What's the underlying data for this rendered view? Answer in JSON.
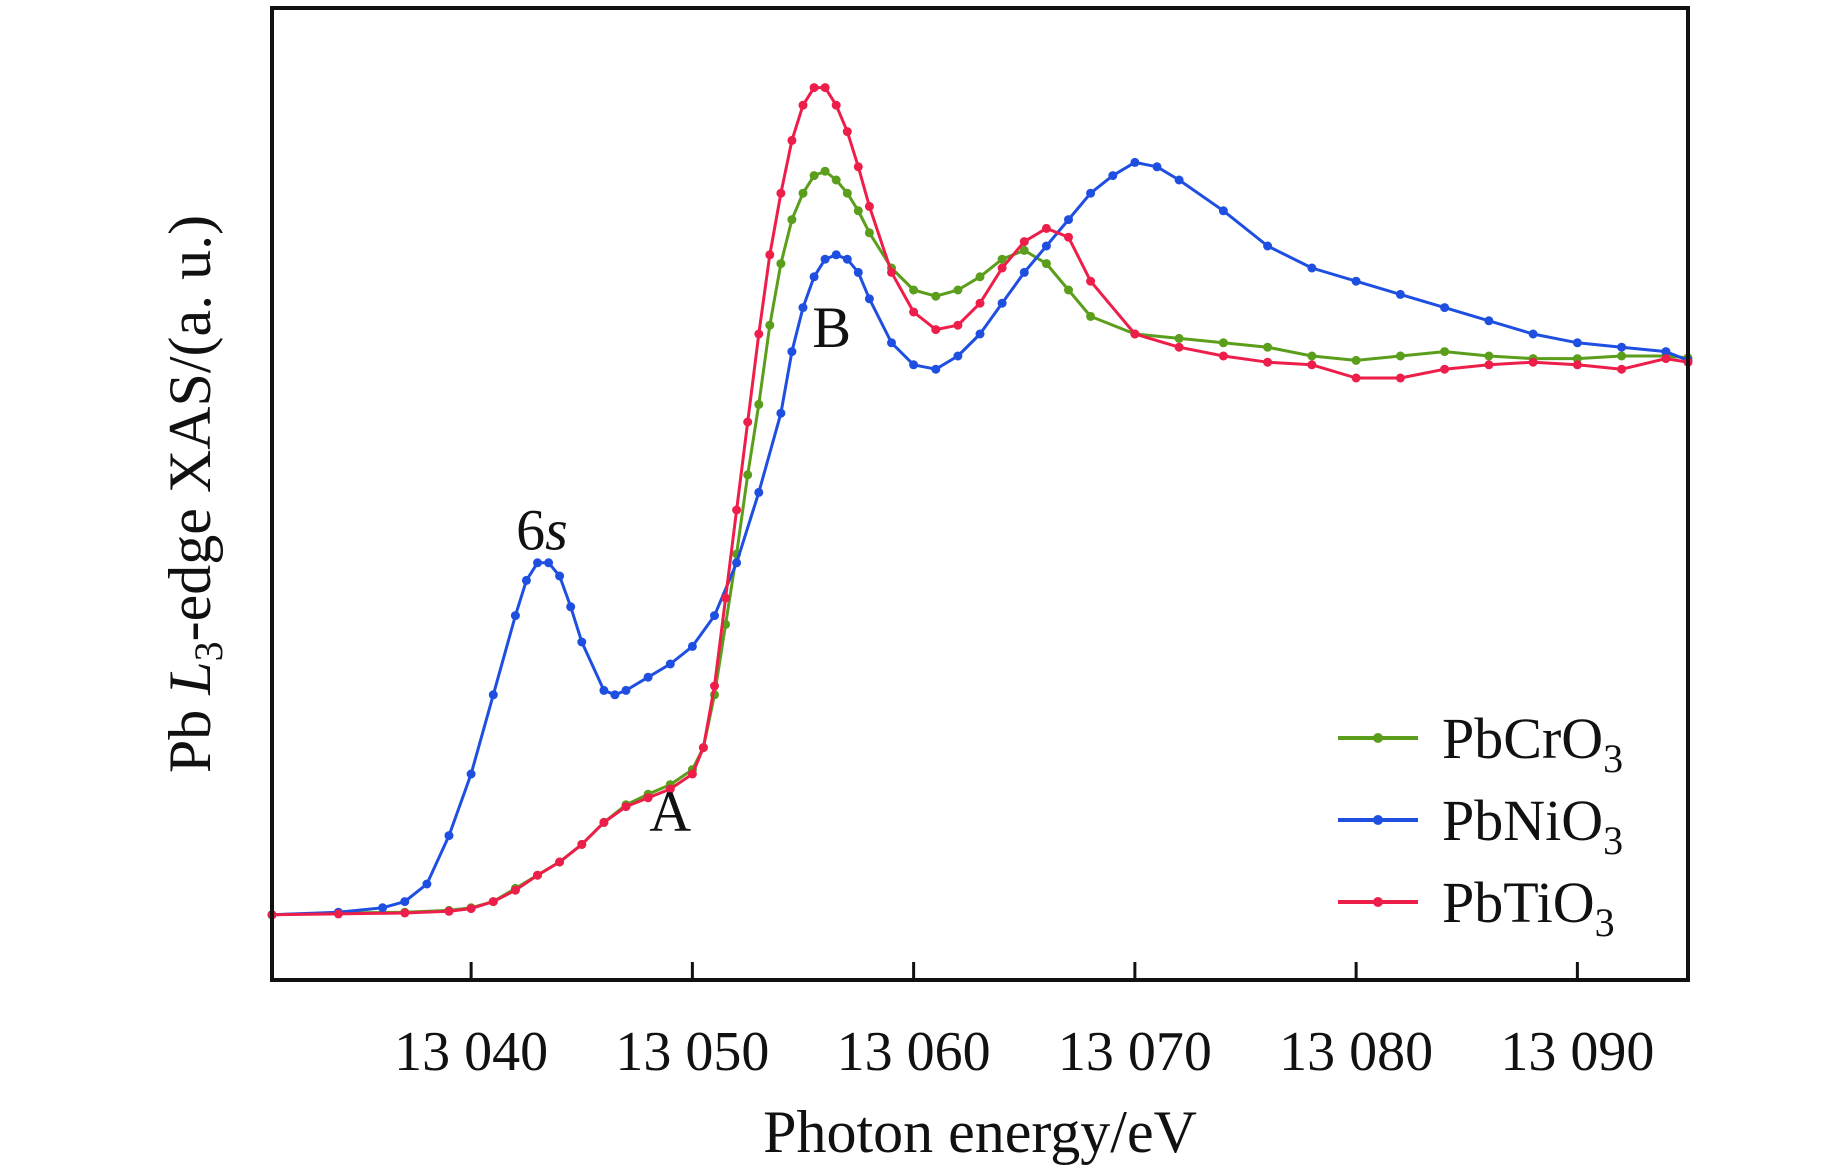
{
  "chart_data": {
    "type": "line",
    "xlabel": "Photon energy/eV",
    "ylabel": {
      "prefix": "Pb ",
      "italic": "L",
      "sub": "3",
      "suffix": "-edge XAS/(a. u.)"
    },
    "xlim": [
      13031,
      13095
    ],
    "ylim": [
      0,
      1
    ],
    "xticks": [
      13040,
      13050,
      13060,
      13070,
      13080,
      13090
    ],
    "xtick_labels": [
      "13 040",
      "13 050",
      "13 060",
      "13 070",
      "13 080",
      "13 090"
    ],
    "yticks": [],
    "grid": false,
    "legend_position": "bottom-right",
    "annotations": [
      {
        "text": "6",
        "italic": "s",
        "x": 13043.2,
        "y": 0.455
      },
      {
        "text": "A",
        "italic": "",
        "x": 13049.0,
        "y": 0.135
      },
      {
        "text": "B",
        "italic": "",
        "x": 13056.3,
        "y": 0.685
      }
    ],
    "series": [
      {
        "name": "PbCrO",
        "sub": "3",
        "color": "#5a9e1c",
        "x": [
          13031,
          13034,
          13037,
          13039,
          13040,
          13041,
          13042,
          13043,
          13044,
          13045,
          13046,
          13047,
          13048,
          13049,
          13050,
          13050.5,
          13051,
          13051.5,
          13052,
          13052.5,
          13053,
          13053.5,
          13054,
          13054.5,
          13055,
          13055.5,
          13056,
          13056.5,
          13057,
          13057.5,
          13058,
          13059,
          13060,
          13061,
          13062,
          13063,
          13064,
          13065,
          13066,
          13067,
          13068,
          13070,
          13072,
          13074,
          13076,
          13078,
          13080,
          13082,
          13084,
          13086,
          13088,
          13090,
          13092,
          13094,
          13095
        ],
        "values": [
          0.04,
          0.042,
          0.043,
          0.045,
          0.048,
          0.055,
          0.07,
          0.085,
          0.1,
          0.12,
          0.145,
          0.165,
          0.177,
          0.188,
          0.205,
          0.23,
          0.29,
          0.37,
          0.45,
          0.54,
          0.62,
          0.71,
          0.78,
          0.83,
          0.86,
          0.88,
          0.885,
          0.875,
          0.86,
          0.84,
          0.815,
          0.775,
          0.75,
          0.743,
          0.75,
          0.765,
          0.785,
          0.795,
          0.78,
          0.75,
          0.72,
          0.7,
          0.695,
          0.69,
          0.685,
          0.675,
          0.67,
          0.675,
          0.68,
          0.675,
          0.672,
          0.672,
          0.675,
          0.675,
          0.673
        ]
      },
      {
        "name": "PbNiO",
        "sub": "3",
        "color": "#1f4fe0",
        "x": [
          13031,
          13034,
          13036,
          13037,
          13038,
          13039,
          13040,
          13041,
          13042,
          13042.5,
          13043,
          13043.5,
          13044,
          13044.5,
          13045,
          13046,
          13046.5,
          13047,
          13048,
          13049,
          13050,
          13051,
          13052,
          13053,
          13054,
          13054.5,
          13055,
          13055.5,
          13056,
          13056.5,
          13057,
          13057.5,
          13058,
          13059,
          13060,
          13061,
          13062,
          13063,
          13064,
          13065,
          13066,
          13067,
          13068,
          13069,
          13070,
          13071,
          13072,
          13074,
          13076,
          13078,
          13080,
          13082,
          13084,
          13086,
          13088,
          13090,
          13092,
          13094,
          13095
        ],
        "values": [
          0.04,
          0.043,
          0.048,
          0.055,
          0.075,
          0.13,
          0.2,
          0.29,
          0.38,
          0.42,
          0.44,
          0.44,
          0.425,
          0.39,
          0.35,
          0.295,
          0.29,
          0.295,
          0.31,
          0.325,
          0.345,
          0.38,
          0.44,
          0.52,
          0.61,
          0.68,
          0.73,
          0.765,
          0.785,
          0.79,
          0.785,
          0.77,
          0.74,
          0.69,
          0.665,
          0.66,
          0.675,
          0.7,
          0.735,
          0.77,
          0.8,
          0.83,
          0.86,
          0.88,
          0.895,
          0.89,
          0.875,
          0.84,
          0.8,
          0.775,
          0.76,
          0.745,
          0.73,
          0.715,
          0.7,
          0.69,
          0.685,
          0.68,
          0.67
        ]
      },
      {
        "name": "PbTiO",
        "sub": "3",
        "color": "#ee1e4a",
        "x": [
          13031,
          13034,
          13037,
          13039,
          13040,
          13041,
          13042,
          13043,
          13044,
          13045,
          13046,
          13047,
          13048,
          13049,
          13050,
          13050.5,
          13051,
          13051.5,
          13052,
          13052.5,
          13053,
          13053.5,
          13054,
          13054.5,
          13055,
          13055.5,
          13056,
          13056.5,
          13057,
          13057.5,
          13058,
          13059,
          13060,
          13061,
          13062,
          13063,
          13064,
          13065,
          13066,
          13067,
          13068,
          13070,
          13072,
          13074,
          13076,
          13078,
          13080,
          13082,
          13084,
          13086,
          13088,
          13090,
          13092,
          13094,
          13095
        ],
        "values": [
          0.04,
          0.041,
          0.042,
          0.044,
          0.047,
          0.055,
          0.068,
          0.085,
          0.1,
          0.12,
          0.145,
          0.163,
          0.173,
          0.183,
          0.2,
          0.23,
          0.3,
          0.4,
          0.5,
          0.6,
          0.7,
          0.79,
          0.86,
          0.92,
          0.96,
          0.98,
          0.98,
          0.96,
          0.93,
          0.89,
          0.845,
          0.77,
          0.725,
          0.705,
          0.71,
          0.735,
          0.775,
          0.805,
          0.82,
          0.81,
          0.76,
          0.7,
          0.685,
          0.675,
          0.668,
          0.665,
          0.65,
          0.65,
          0.66,
          0.665,
          0.668,
          0.665,
          0.66,
          0.672,
          0.668
        ]
      }
    ]
  }
}
